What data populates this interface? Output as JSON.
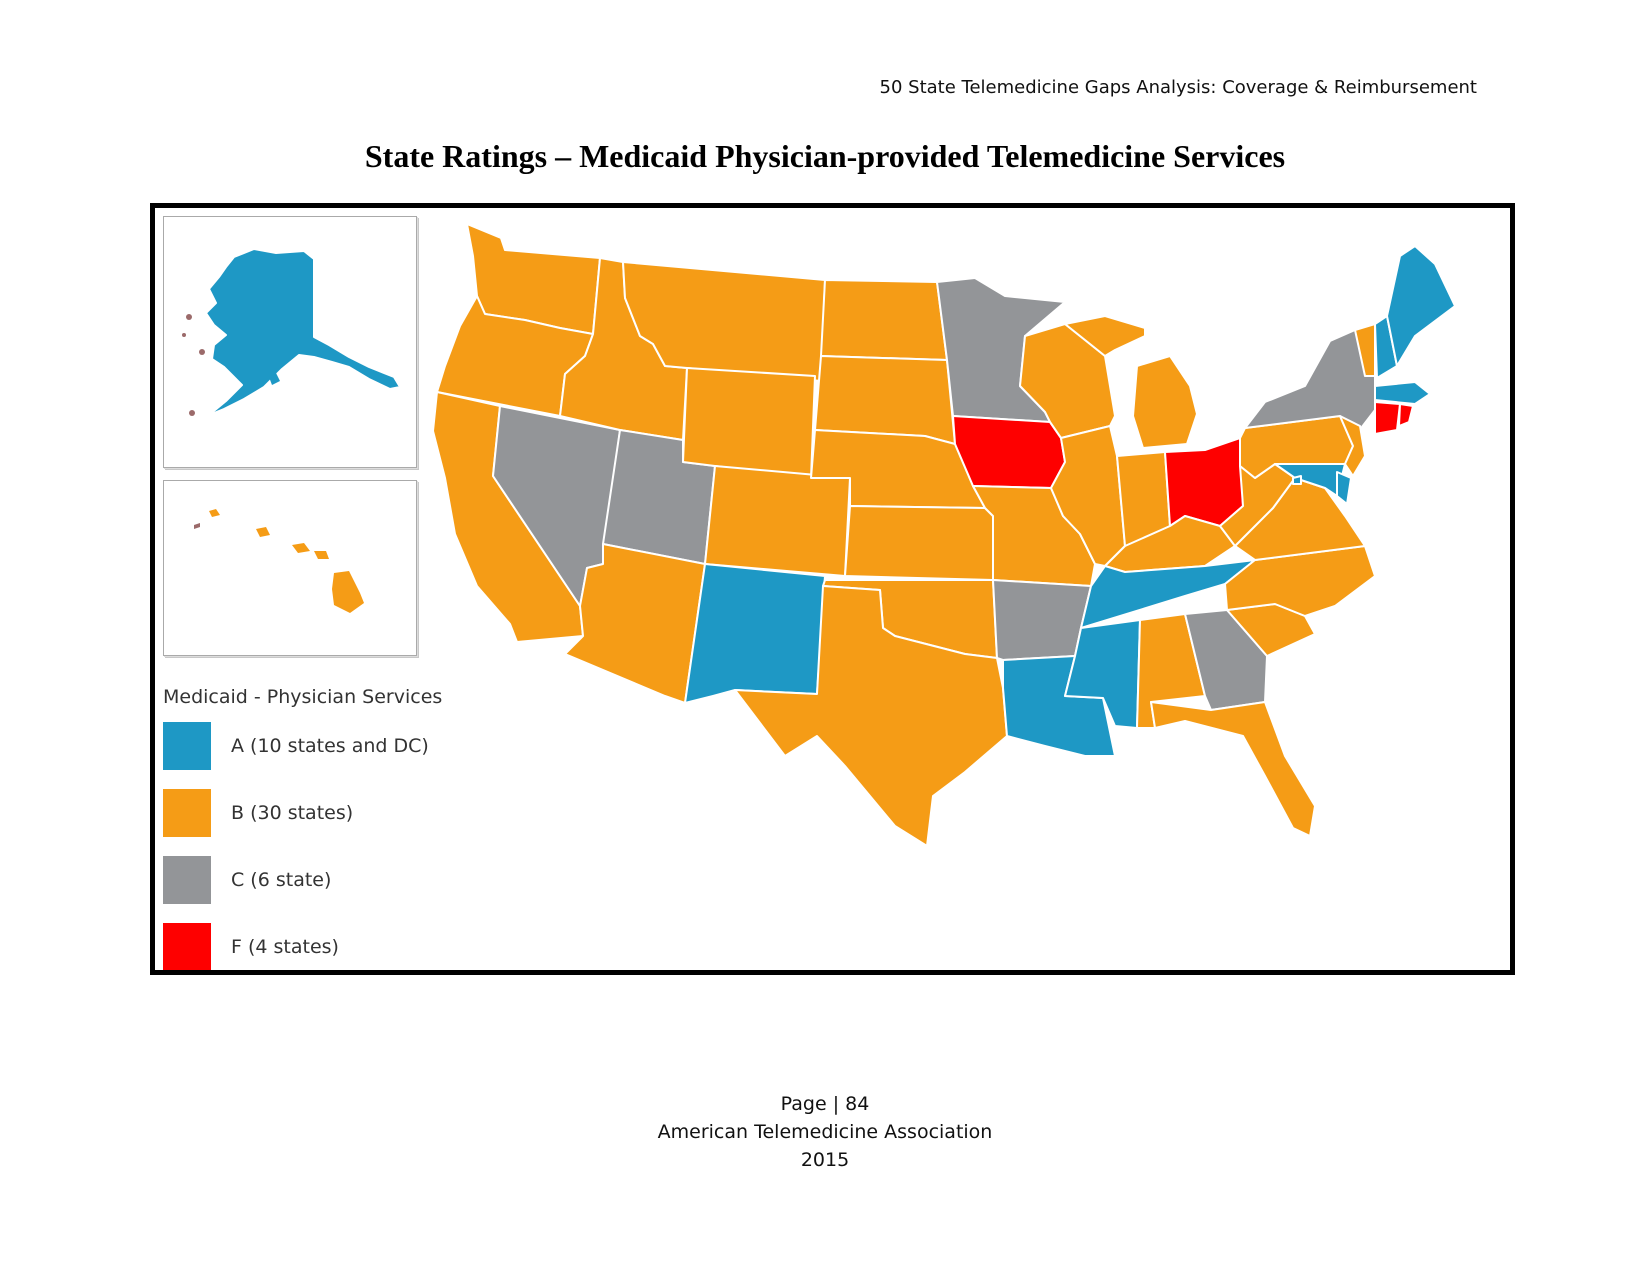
{
  "header": {
    "running_title": "50 State Telemedicine Gaps Analysis:  Coverage & Reimbursement"
  },
  "title": "State Ratings – Medicaid Physician-provided Telemedicine Services",
  "colors": {
    "A": "#1e98c5",
    "B": "#f59c16",
    "C": "#939598",
    "F": "#fe0000"
  },
  "legend": {
    "title": "Medicaid - Physician Services",
    "items": [
      {
        "grade": "A",
        "label": "A (10 states and DC)",
        "color": "#1e98c5"
      },
      {
        "grade": "B",
        "label": "B (30 states)",
        "color": "#f59c16"
      },
      {
        "grade": "C",
        "label": "C (6 state)",
        "color": "#939598"
      },
      {
        "grade": "F",
        "label": "F (4 states)",
        "color": "#fe0000"
      }
    ]
  },
  "state_grades": {
    "Alaska": "A",
    "Hawaii": "B",
    "Washington": "B",
    "Oregon": "B",
    "California": "B",
    "Idaho": "B",
    "Nevada": "C",
    "Utah": "C",
    "Arizona": "B",
    "Montana": "B",
    "Wyoming": "B",
    "Colorado": "B",
    "New Mexico": "A",
    "North Dakota": "B",
    "South Dakota": "B",
    "Nebraska": "B",
    "Kansas": "B",
    "Oklahoma": "B",
    "Texas": "B",
    "Minnesota": "C",
    "Iowa": "F",
    "Missouri": "B",
    "Arkansas": "C",
    "Louisiana": "A",
    "Wisconsin": "B",
    "Illinois": "B",
    "Mississippi": "A",
    "Michigan": "B",
    "Indiana": "B",
    "Kentucky": "B",
    "Tennessee": "A",
    "Alabama": "B",
    "Ohio": "F",
    "Georgia": "C",
    "Florida": "B",
    "South Carolina": "B",
    "North Carolina": "B",
    "Virginia": "B",
    "West Virginia": "B",
    "Pennsylvania": "B",
    "New York": "C",
    "Maryland": "A",
    "Delaware": "A",
    "District of Columbia": "A",
    "New Jersey": "B",
    "Connecticut": "F",
    "Rhode Island": "F",
    "Massachusetts": "A",
    "Vermont": "B",
    "New Hampshire": "A",
    "Maine": "A"
  },
  "footer": {
    "page": "Page | 84",
    "organization": "American Telemedicine Association",
    "year": "2015"
  }
}
